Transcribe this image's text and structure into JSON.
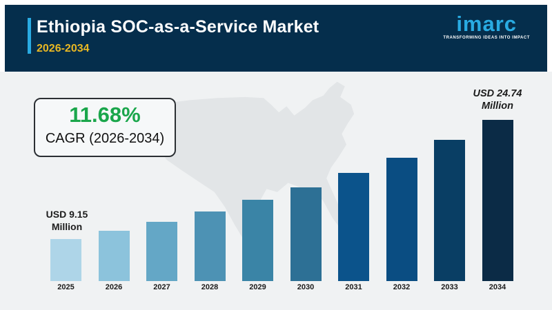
{
  "header": {
    "title": "Ethiopia SOC-as-a-Service Market",
    "period": "2026-2034",
    "background_color": "#052e4c",
    "accent_color": "#29abe2",
    "period_color": "#e9b823",
    "logo": {
      "brand": "imarc",
      "tagline": "TRANSFORMING IDEAS INTO IMPACT",
      "brand_color": "#29abe2"
    }
  },
  "cagr_card": {
    "value": "11.68%",
    "value_color": "#1aa64b",
    "label": "CAGR (2026-2034)"
  },
  "annotations": {
    "start": {
      "line1": "USD 9.15",
      "line2": "Million"
    },
    "end": {
      "line1": "USD 24.74",
      "line2": "Million"
    }
  },
  "watermark": {
    "name": "united-states-map-silhouette",
    "color": "#e2e5e7"
  },
  "chart_data": {
    "type": "bar",
    "title": "Ethiopia SOC-as-a-Service Market",
    "unit": "USD Million",
    "categories": [
      "2025",
      "2026",
      "2027",
      "2028",
      "2029",
      "2030",
      "2031",
      "2032",
      "2033",
      "2034"
    ],
    "values": [
      9.15,
      10.22,
      11.41,
      12.74,
      14.23,
      15.89,
      17.75,
      19.82,
      22.14,
      24.74
    ],
    "labeled_points": {
      "2025": "USD 9.15 Million",
      "2034": "USD 24.74 Million"
    },
    "cagr_pct": 11.68,
    "cagr_period": "2026-2034",
    "xlabel": "",
    "ylabel": "",
    "ylim": [
      3.6,
      26.2
    ],
    "grid": false,
    "legend": false,
    "bar_colors": [
      "#aed5e8",
      "#8cc3dc",
      "#64a7c6",
      "#4d92b4",
      "#3a84a6",
      "#2d7095",
      "#0b538b",
      "#0a4d82",
      "#093e64",
      "#0b2b46"
    ]
  }
}
